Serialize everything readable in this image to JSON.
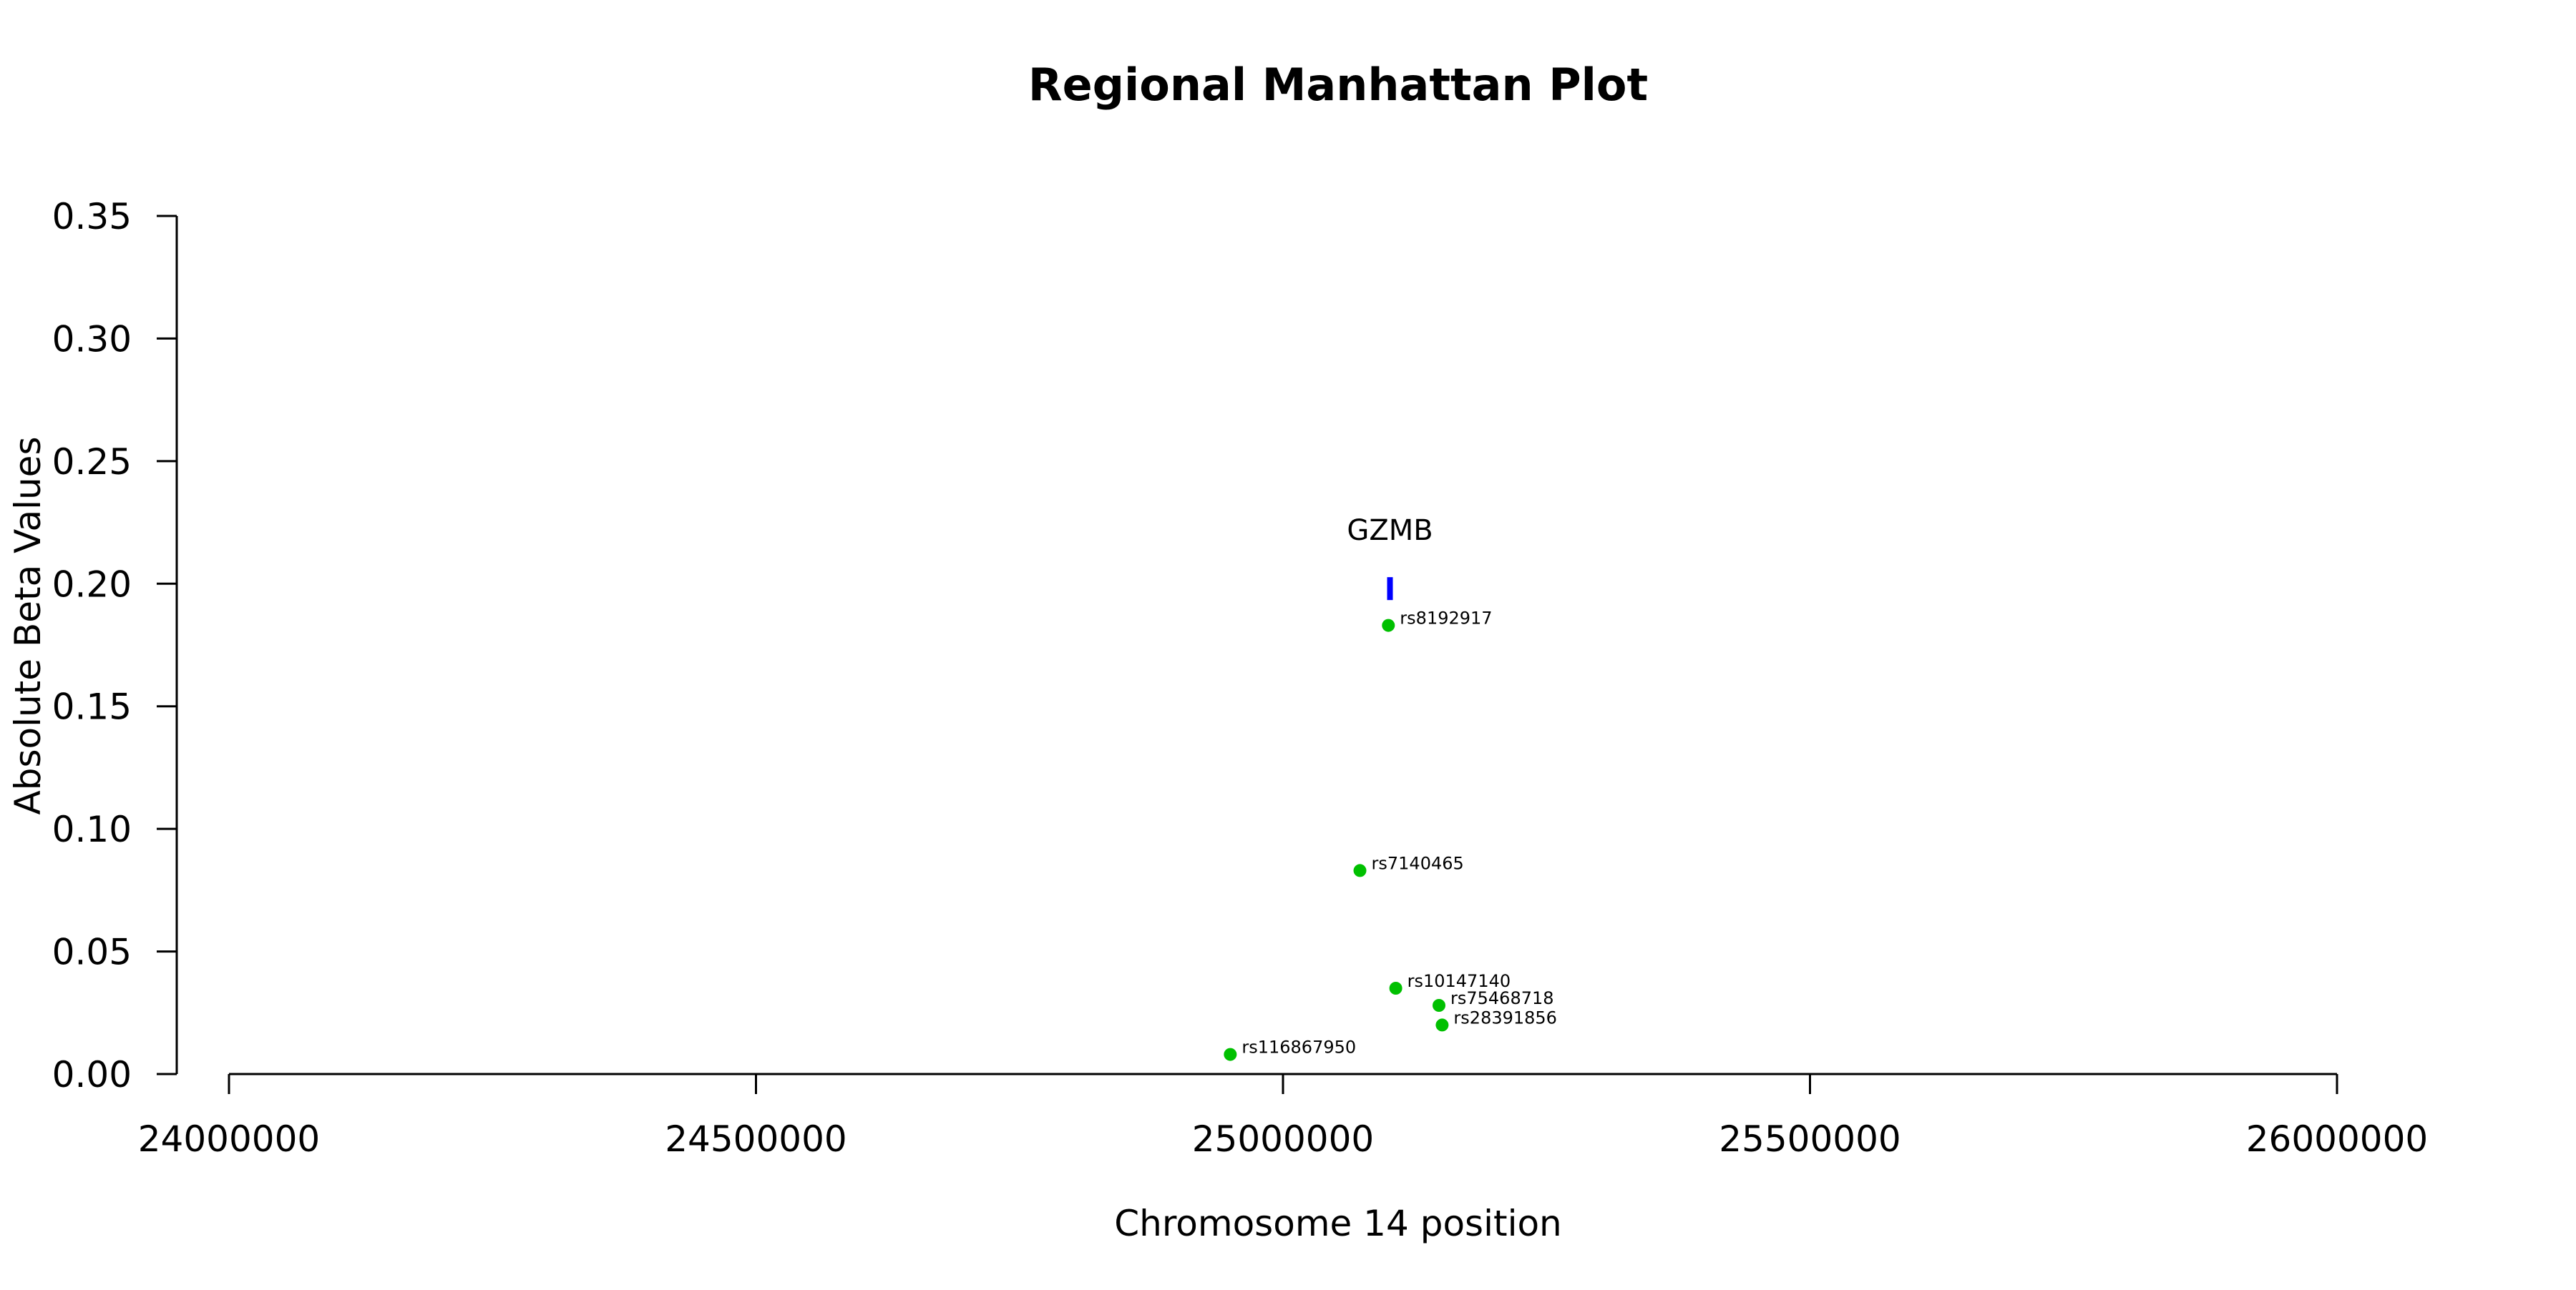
{
  "chart_data": {
    "type": "scatter",
    "title": "Regional Manhattan Plot",
    "xlabel": "Chromosome 14 position",
    "ylabel": "Absolute Beta Values",
    "xlim": [
      23950000,
      26150000
    ],
    "ylim": [
      0,
      0.35
    ],
    "x_ticks": [
      24000000,
      24500000,
      25000000,
      25500000,
      26000000
    ],
    "x_tick_labels": [
      "24000000",
      "24500000",
      "25000000",
      "25500000",
      "26000000"
    ],
    "y_ticks": [
      0,
      0.05,
      0.1,
      0.15,
      0.2,
      0.25,
      0.3,
      0.35
    ],
    "y_tick_labels": [
      "0.00",
      "0.05",
      "0.10",
      "0.15",
      "0.20",
      "0.25",
      "0.30",
      "0.35"
    ],
    "grid": false,
    "legend": "none",
    "point_color": "#00c000",
    "points": [
      {
        "label": "rs8192917",
        "x": 25100000,
        "y": 0.183
      },
      {
        "label": "rs7140465",
        "x": 25073000,
        "y": 0.083
      },
      {
        "label": "rs10147140",
        "x": 25107000,
        "y": 0.035
      },
      {
        "label": "rs75468718",
        "x": 25148000,
        "y": 0.028
      },
      {
        "label": "rs28391856",
        "x": 25151000,
        "y": 0.02
      },
      {
        "label": "rs116867950",
        "x": 24950000,
        "y": 0.008
      }
    ],
    "gene_annotations": [
      {
        "name": "GZMB",
        "start": 25100000,
        "end": 25103000,
        "y": 0.198,
        "color": "#0000ff"
      }
    ]
  }
}
